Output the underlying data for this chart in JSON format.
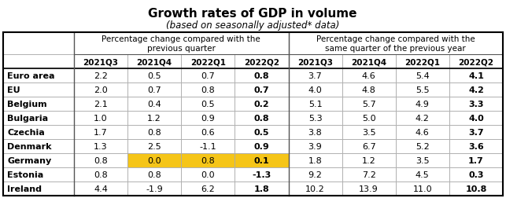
{
  "title": "Growth rates of GDP in volume",
  "subtitle": "(based on seasonally adjusted* data)",
  "group1_label": "Percentage change compared with the\nprevious quarter",
  "group2_label": "Percentage change compared with the\nsame quarter of the previous year",
  "col_headers": [
    "2021Q3",
    "2021Q4",
    "2022Q1",
    "2022Q2",
    "2021Q3",
    "2021Q4",
    "2022Q1",
    "2022Q2"
  ],
  "row_headers": [
    "Euro area",
    "EU",
    "Belgium",
    "Bulgaria",
    "Czechia",
    "Denmark",
    "Germany",
    "Estonia",
    "Ireland"
  ],
  "data": [
    [
      2.2,
      0.5,
      0.7,
      0.8,
      3.7,
      4.6,
      5.4,
      4.1
    ],
    [
      2.0,
      0.7,
      0.8,
      0.7,
      4.0,
      4.8,
      5.5,
      4.2
    ],
    [
      2.1,
      0.4,
      0.5,
      0.2,
      5.1,
      5.7,
      4.9,
      3.3
    ],
    [
      1.0,
      1.2,
      0.9,
      0.8,
      5.3,
      5.0,
      4.2,
      4.0
    ],
    [
      1.7,
      0.8,
      0.6,
      0.5,
      3.8,
      3.5,
      4.6,
      3.7
    ],
    [
      1.3,
      2.5,
      -1.1,
      0.9,
      3.9,
      6.7,
      5.2,
      3.6
    ],
    [
      0.8,
      0.0,
      0.8,
      0.1,
      1.8,
      1.2,
      3.5,
      1.7
    ],
    [
      0.8,
      0.8,
      0.0,
      -1.3,
      9.2,
      7.2,
      4.5,
      0.3
    ],
    [
      4.4,
      -1.9,
      6.2,
      1.8,
      10.2,
      13.9,
      11.0,
      10.8
    ]
  ],
  "highlight_cells": [
    {
      "row": 6,
      "col": 1,
      "bg": "#f5c518"
    },
    {
      "row": 6,
      "col": 2,
      "bg": "#f5c518"
    },
    {
      "row": 6,
      "col": 3,
      "bg": "#f5c518"
    }
  ],
  "bold_last_col_group1": 3,
  "bold_last_col_group2": 7,
  "title_fontsize": 11,
  "subtitle_fontsize": 8.5,
  "header_fontsize": 7.5,
  "cell_fontsize": 8,
  "row_header_fontsize": 8
}
